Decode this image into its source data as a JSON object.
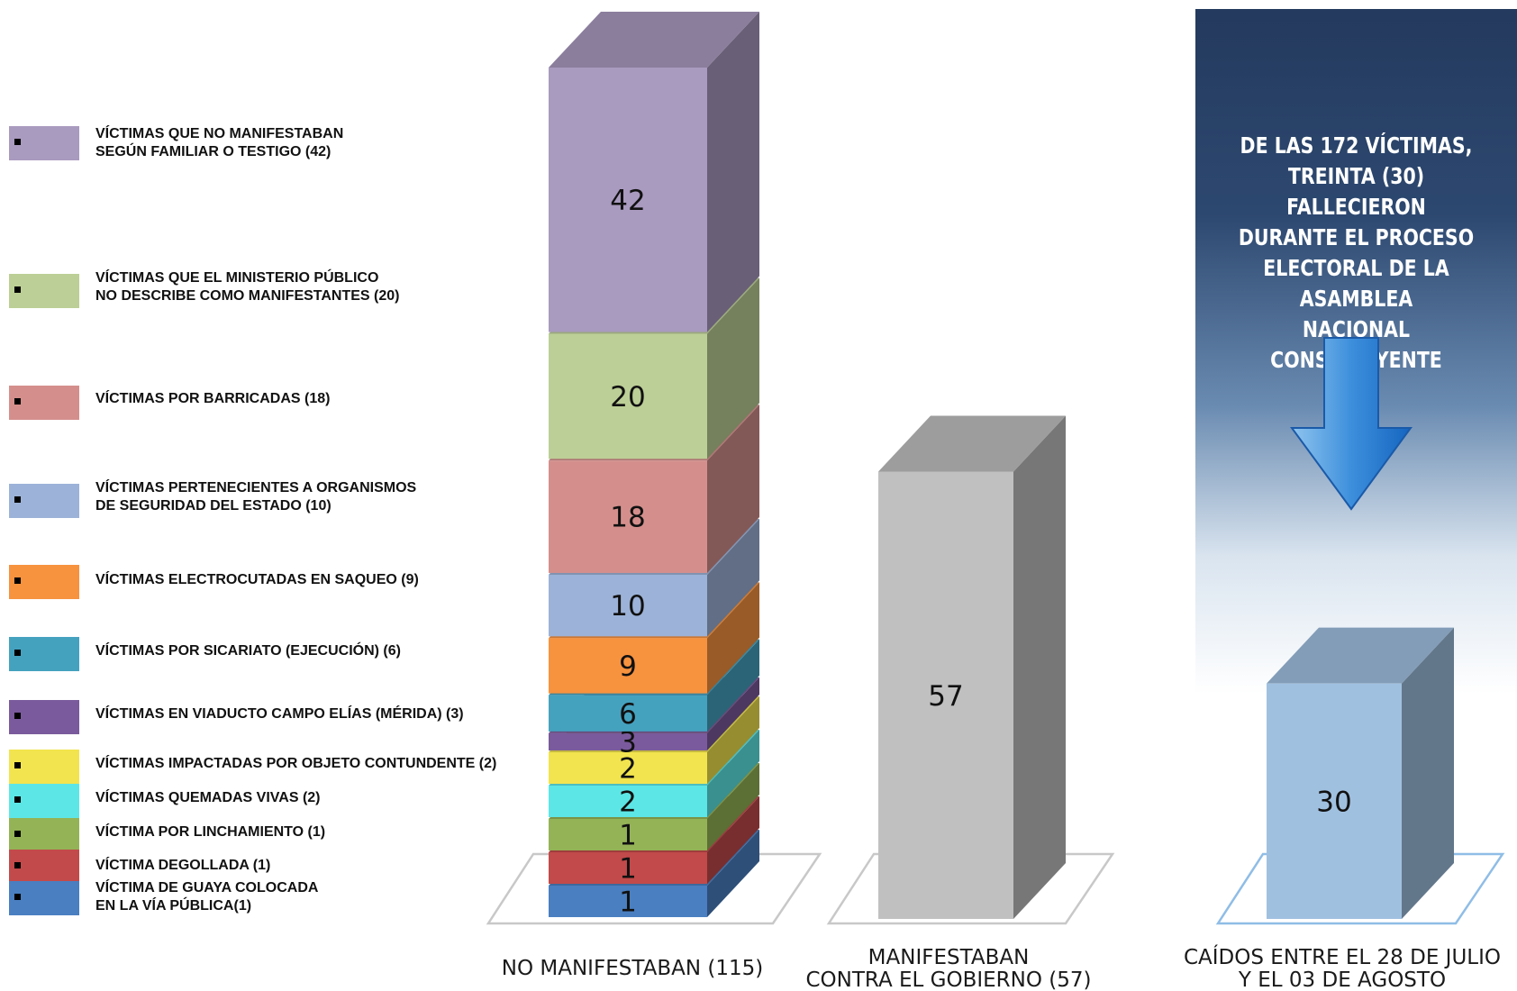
{
  "legend": [
    {
      "label": "VÍCTIMAS QUE NO MANIFESTABAN\nSEGÚN FAMILIAR O TESTIGO (42)",
      "color": "#a99abf"
    },
    {
      "label": "VÍCTIMAS QUE EL MINISTERIO PÚBLICO\nNO DESCRIBE COMO MANIFESTANTES (20)",
      "color": "#bccf96"
    },
    {
      "label": "VÍCTIMAS POR BARRICADAS (18)",
      "color": "#d48f8c"
    },
    {
      "label": "VÍCTIMAS PERTENECIENTES A ORGANISMOS\nDE SEGURIDAD DEL ESTADO (10)",
      "color": "#9cb2d8"
    },
    {
      "label": "VÍCTIMAS ELECTROCUTADAS EN SAQUEO (9)",
      "color": "#f7923f"
    },
    {
      "label": "VÍCTIMAS POR SICARIATO (EJECUCIÓN) (6)",
      "color": "#45a2bf"
    },
    {
      "label": "VÍCTIMAS EN VIADUCTO CAMPO ELÍAS (MÉRIDA) (3)",
      "color": "#7a5a9c"
    },
    {
      "label": "VÍCTIMAS IMPACTADAS POR OBJETO CONTUNDENTE (2)",
      "color": "#f2e44e"
    },
    {
      "label": "VÍCTIMAS QUEMADAS VIVAS (2)",
      "color": "#5de6e6"
    },
    {
      "label": "VÍCTIMA POR LINCHAMIENTO (1)",
      "color": "#94b356"
    },
    {
      "label": "VÍCTIMA DEGOLLADA (1)",
      "color": "#c24a4a"
    },
    {
      "label": "VÍCTIMA DE GUAYA COLOCADA\nEN LA VÍA PÚBLICA(1)",
      "color": "#4a7fc1"
    }
  ],
  "chart_data": {
    "type": "bar",
    "categories": [
      "NO MANIFESTABAN (115)",
      "MANIFESTABAN\nCONTRA EL GOBIERNO (57)",
      "CAÍDOS ENTRE EL 28 DE JULIO\nY EL 03 DE AGOSTO"
    ],
    "stacked_bar": {
      "category": "NO MANIFESTABAN (115)",
      "segments": [
        {
          "value": 1,
          "color": "#4a7fc1"
        },
        {
          "value": 1,
          "color": "#c24a4a"
        },
        {
          "value": 1,
          "color": "#94b356"
        },
        {
          "value": 2,
          "color": "#5de6e6"
        },
        {
          "value": 2,
          "color": "#f2e44e"
        },
        {
          "value": 3,
          "color": "#7a5a9c"
        },
        {
          "value": 6,
          "color": "#45a2bf"
        },
        {
          "value": 9,
          "color": "#f7923f"
        },
        {
          "value": 10,
          "color": "#9cb2d8"
        },
        {
          "value": 18,
          "color": "#d48f8c"
        },
        {
          "value": 20,
          "color": "#bccf96"
        },
        {
          "value": 42,
          "color": "#a99abf"
        }
      ]
    },
    "bars": [
      {
        "category": "MANIFESTABAN\nCONTRA EL GOBIERNO (57)",
        "value": 57,
        "color": "#c0c0c0"
      },
      {
        "category": "CAÍDOS ENTRE EL 28 DE JULIO\nY EL 03 DE AGOSTO",
        "value": 30,
        "color": "#a0c0e0"
      }
    ]
  },
  "panel": {
    "title": "DE LAS 172 VÍCTIMAS,\nTREINTA (30) FALLECIERON\nDURANTE EL PROCESO\nELECTORAL DE LA ASAMBLEA\nNACIONAL CONSTITUYENTE"
  }
}
